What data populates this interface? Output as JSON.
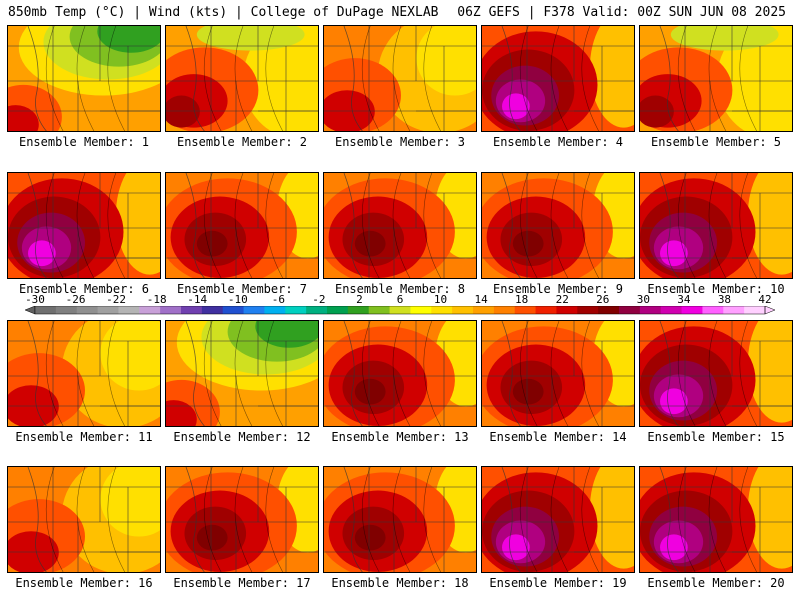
{
  "header": {
    "title": "850mb Temp (°C) | Wind (kts) | College of DuPage NEXLAB",
    "run_info": "06Z GEFS | F378 Valid: 00Z SUN JUN 08 2025"
  },
  "colorbar": {
    "tick_labels": [
      "-30",
      "-26",
      "-22",
      "-18",
      "-14",
      "-10",
      "-6",
      "-2",
      "2",
      "6",
      "10",
      "14",
      "18",
      "22",
      "26",
      "30",
      "34",
      "38",
      "42"
    ],
    "colors": [
      "#707070",
      "#808080",
      "#909090",
      "#a0a0a0",
      "#b4b4b4",
      "#c8a0d8",
      "#a070c8",
      "#7040b0",
      "#4030a0",
      "#2050d0",
      "#2080f0",
      "#00b0f0",
      "#00d0c0",
      "#00b080",
      "#00a050",
      "#30a020",
      "#80c020",
      "#d0e020",
      "#ffff00",
      "#ffe000",
      "#ffc000",
      "#ffa000",
      "#ff8000",
      "#ff5000",
      "#f02000",
      "#d00000",
      "#a00000",
      "#800000",
      "#900040",
      "#b00080",
      "#d000b0",
      "#f000e0",
      "#ff60ff",
      "#ffa0ff",
      "#ffd0ff"
    ]
  },
  "panels": [
    {
      "label": "Ensemble Member: 1",
      "theme": "green-cool"
    },
    {
      "label": "Ensemble Member: 2",
      "theme": "yellow-red"
    },
    {
      "label": "Ensemble Member: 3",
      "theme": "orange"
    },
    {
      "label": "Ensemble Member: 4",
      "theme": "magenta-hot"
    },
    {
      "label": "Ensemble Member: 5",
      "theme": "yellow-red"
    },
    {
      "label": "Ensemble Member: 6",
      "theme": "magenta-hot"
    },
    {
      "label": "Ensemble Member: 7",
      "theme": "red-hot"
    },
    {
      "label": "Ensemble Member: 8",
      "theme": "red-hot"
    },
    {
      "label": "Ensemble Member: 9",
      "theme": "red-hot"
    },
    {
      "label": "Ensemble Member: 10",
      "theme": "magenta-hot"
    },
    {
      "label": "Ensemble Member: 11",
      "theme": "orange"
    },
    {
      "label": "Ensemble Member: 12",
      "theme": "green-cool"
    },
    {
      "label": "Ensemble Member: 13",
      "theme": "red-hot"
    },
    {
      "label": "Ensemble Member: 14",
      "theme": "red-hot"
    },
    {
      "label": "Ensemble Member: 15",
      "theme": "magenta-hot"
    },
    {
      "label": "Ensemble Member: 16",
      "theme": "orange"
    },
    {
      "label": "Ensemble Member: 17",
      "theme": "red-hot"
    },
    {
      "label": "Ensemble Member: 18",
      "theme": "red-hot"
    },
    {
      "label": "Ensemble Member: 19",
      "theme": "magenta-hot"
    },
    {
      "label": "Ensemble Member: 20",
      "theme": "magenta-hot"
    }
  ]
}
